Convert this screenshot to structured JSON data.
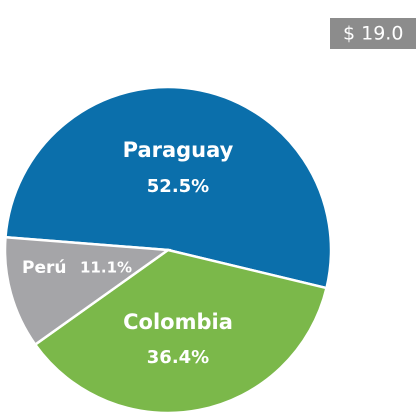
{
  "chart_data": {
    "type": "pie",
    "badge": "$ 19.0",
    "categories": [
      "Paraguay",
      "Colombia",
      "Perú"
    ],
    "values": [
      52.5,
      36.4,
      11.1
    ],
    "value_labels": [
      "52.5%",
      "36.4%",
      "11.1%"
    ],
    "colors": [
      "#0b6fab",
      "#7bb84a",
      "#a5a5a8"
    ]
  }
}
